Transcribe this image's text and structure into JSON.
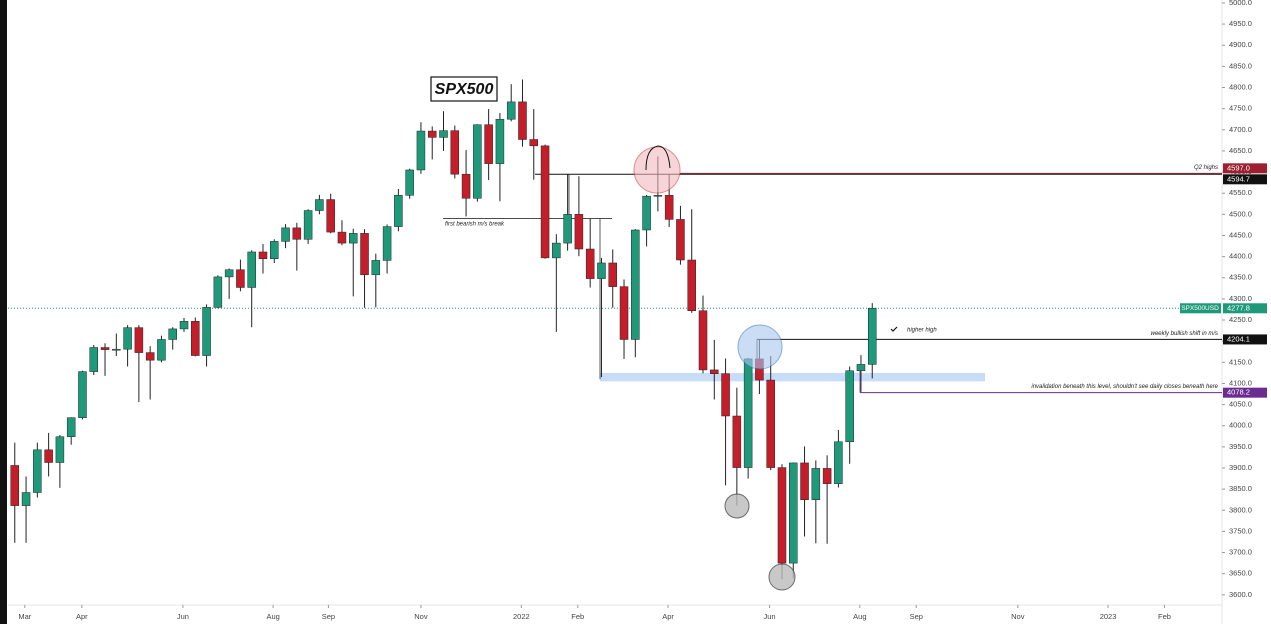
{
  "chart_data": {
    "type": "candlestick",
    "title": "SPX500",
    "symbol": "SPX500USD",
    "up_color": "#1e9a7a",
    "down_color": "#c41e2a",
    "open": [
      3906,
      3811,
      3842,
      3943,
      3913,
      3974,
      4019,
      4128,
      4185,
      4180,
      4181,
      4232,
      4173,
      4155,
      4204,
      4229,
      4247,
      4166,
      4280,
      4352,
      4369,
      4327,
      4411,
      4395,
      4436,
      4468,
      4441,
      4509,
      4535,
      4458,
      4432,
      4455,
      4357,
      4391,
      4471,
      4545,
      4605,
      4697,
      4682,
      4698,
      4595,
      4538,
      4712,
      4620,
      4725,
      4766,
      4677,
      4662,
      4397,
      4432,
      4500,
      4418,
      4348,
      4385,
      4329,
      4204,
      4463,
      4543,
      4545,
      4488,
      4392,
      4272,
      4132,
      4123,
      4023,
      3901,
      4158,
      4108,
      3901,
      3675,
      3912,
      3825,
      3899,
      3863,
      3962,
      4130,
      4145
    ],
    "high": [
      3960,
      3880,
      3960,
      3983,
      3978,
      4020,
      4130,
      4191,
      4195,
      4218,
      4238,
      4238,
      4188,
      4213,
      4233,
      4255,
      4256,
      4287,
      4356,
      4372,
      4393,
      4415,
      4430,
      4441,
      4477,
      4480,
      4512,
      4546,
      4549,
      4486,
      4466,
      4465,
      4407,
      4476,
      4560,
      4608,
      4718,
      4708,
      4744,
      4710,
      4652,
      4713,
      4749,
      4740,
      4808,
      4819,
      4749,
      4665,
      4453,
      4595,
      4590,
      4490,
      4397,
      4417,
      4346,
      4465,
      4546,
      4637,
      4594,
      4520,
      4512,
      4308,
      4203,
      4159,
      4090,
      4160,
      4204,
      4165,
      3909,
      3913,
      3951,
      3918,
      3930,
      3990,
      4140,
      4167,
      4290
    ],
    "low": [
      3723,
      3723,
      3830,
      3880,
      3853,
      3955,
      4015,
      4120,
      4118,
      4165,
      4140,
      4056,
      4062,
      4150,
      4180,
      4222,
      4164,
      4140,
      4278,
      4300,
      4318,
      4233,
      4360,
      4385,
      4420,
      4367,
      4430,
      4500,
      4455,
      4427,
      4306,
      4279,
      4280,
      4360,
      4460,
      4537,
      4596,
      4630,
      4650,
      4585,
      4495,
      4530,
      4581,
      4531,
      4720,
      4660,
      4582,
      4395,
      4222,
      4414,
      4401,
      4327,
      4115,
      4279,
      4158,
      4162,
      4424,
      4507,
      4470,
      4381,
      4267,
      4124,
      4062,
      3859,
      3811,
      3875,
      4075,
      3895,
      3637,
      3639,
      3738,
      3722,
      3721,
      3854,
      3910,
      4080,
      4112
    ],
    "close": [
      3811,
      3842,
      3943,
      3913,
      3974,
      4019,
      4128,
      4185,
      4180,
      4181,
      4232,
      4173,
      4155,
      4204,
      4229,
      4247,
      4166,
      4280,
      4352,
      4369,
      4327,
      4411,
      4395,
      4436,
      4468,
      4441,
      4509,
      4535,
      4458,
      4432,
      4455,
      4357,
      4391,
      4471,
      4545,
      4605,
      4697,
      4682,
      4698,
      4595,
      4538,
      4712,
      4620,
      4725,
      4766,
      4677,
      4662,
      4397,
      4432,
      4500,
      4418,
      4348,
      4385,
      4329,
      4204,
      4463,
      4543,
      4545,
      4488,
      4392,
      4272,
      4132,
      4123,
      4023,
      3901,
      4158,
      4108,
      3901,
      3675,
      3912,
      3825,
      3899,
      3863,
      3962,
      4130,
      4145,
      4278
    ],
    "xlim": [
      -0.6,
      107
    ],
    "xticks": [
      {
        "value": 0.89,
        "label": "Mar"
      },
      {
        "value": 5.94,
        "label": "Apr"
      },
      {
        "value": 14.9,
        "label": "Jun"
      },
      {
        "value": 22.9,
        "label": "Aug"
      },
      {
        "value": 27.8,
        "label": "Sep"
      },
      {
        "value": 36.0,
        "label": "Nov"
      },
      {
        "value": 44.9,
        "label": "2022"
      },
      {
        "value": 49.9,
        "label": "Feb"
      },
      {
        "value": 57.9,
        "label": "Apr"
      },
      {
        "value": 66.9,
        "label": "Jun"
      },
      {
        "value": 74.9,
        "label": "Aug"
      },
      {
        "value": 79.9,
        "label": "Sep"
      },
      {
        "value": 88.9,
        "label": "Nov"
      },
      {
        "value": 96.9,
        "label": "2023"
      },
      {
        "value": 101.9,
        "label": "Feb"
      }
    ],
    "ylim": [
      3531,
      5007
    ],
    "yticks": [
      {
        "value": 3600,
        "label": "3600.0"
      },
      {
        "value": 3650,
        "label": "3650.0"
      },
      {
        "value": 3700,
        "label": "3700.0"
      },
      {
        "value": 3750,
        "label": "3750.0"
      },
      {
        "value": 3800,
        "label": "3800.0"
      },
      {
        "value": 3850,
        "label": "3850.0"
      },
      {
        "value": 3900,
        "label": "3900.0"
      },
      {
        "value": 3950,
        "label": "3950.0"
      },
      {
        "value": 4000,
        "label": "4000.0"
      },
      {
        "value": 4050,
        "label": "4050.0"
      },
      {
        "value": 4100,
        "label": "4100.0"
      },
      {
        "value": 4150,
        "label": "4150.0"
      },
      {
        "value": 4200,
        "label": "4200.0"
      },
      {
        "value": 4250,
        "label": "4250.0"
      },
      {
        "value": 4300,
        "label": "4300.0"
      },
      {
        "value": 4350,
        "label": "4350.0"
      },
      {
        "value": 4400,
        "label": "4400.0"
      },
      {
        "value": 4450,
        "label": "4450.0"
      },
      {
        "value": 4500,
        "label": "4500.0"
      },
      {
        "value": 4550,
        "label": "4550.0"
      },
      {
        "value": 4600,
        "label": "4600.0"
      },
      {
        "value": 4650,
        "label": "4650.0"
      },
      {
        "value": 4700,
        "label": "4700.0"
      },
      {
        "value": 4750,
        "label": "4750.0"
      },
      {
        "value": 4800,
        "label": "4800.0"
      },
      {
        "value": 4850,
        "label": "4850.0"
      },
      {
        "value": 4900,
        "label": "4900.0"
      },
      {
        "value": 4950,
        "label": "4950.0"
      },
      {
        "value": 5000,
        "label": "5000.0"
      }
    ],
    "levels": [
      {
        "value": 4597.0,
        "label": "4597.0",
        "color": "#9c2030"
      },
      {
        "value": 4594.7,
        "label": "4594.7",
        "color": "#111111",
        "text": "Q2 highs"
      },
      {
        "value": 4277.8,
        "label": "4277.8",
        "color": "#1e9a7a"
      },
      {
        "value": 4204.1,
        "label": "4204.1",
        "color": "#111111",
        "text": "weekly bullish shift in m/s"
      },
      {
        "value": 4078.2,
        "label": "4078.2",
        "color": "#6a2c91",
        "text": "invalidation beneath this level, shouldn't see daily closes beneath here"
      }
    ],
    "annotations": [
      "first bearish m/s break",
      "higher high"
    ]
  }
}
